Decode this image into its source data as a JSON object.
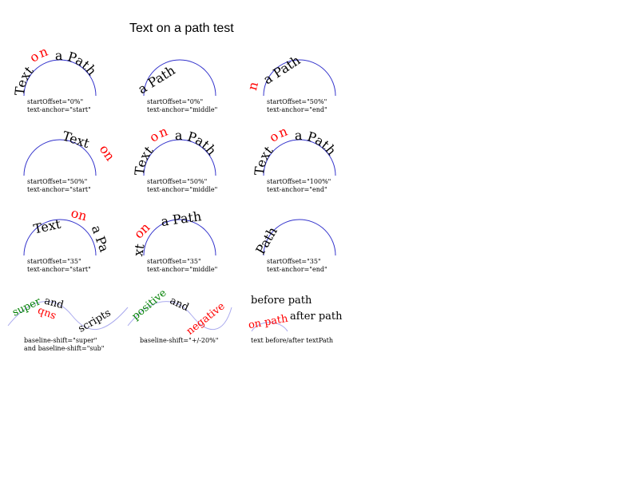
{
  "title": "Text on a path test",
  "colors": {
    "path_stroke": "#3333cc",
    "wave_stroke": "#aaaaee",
    "text_black": "#000000",
    "text_red": "#ff0000",
    "text_green": "#008000"
  },
  "words": {
    "text": "Text",
    "on": "on",
    "a_path": "a Path",
    "path": "Path",
    "n": "n",
    "xt": "xt",
    "a_pa": "a Pa"
  },
  "captions": {
    "r1c1": [
      "startOffset=\"0%\"",
      "text-anchor=\"start\""
    ],
    "r1c2": [
      "startOffset=\"0%\"",
      "text-anchor=\"middle\""
    ],
    "r1c3": [
      "startOffset=\"50%\"",
      "text-anchor=\"end\""
    ],
    "r2c1": [
      "startOffset=\"50%\"",
      "text-anchor=\"start\""
    ],
    "r2c2": [
      "startOffset=\"50%\"",
      "text-anchor=\"middle\""
    ],
    "r2c3": [
      "startOffset=\"100%\"",
      "text-anchor=\"end\""
    ],
    "r3c1": [
      "startOffset=\"35\"",
      "text-anchor=\"start\""
    ],
    "r3c2": [
      "startOffset=\"35\"",
      "text-anchor=\"middle\""
    ],
    "r3c3": [
      "startOffset=\"35\"",
      "text-anchor=\"end\""
    ],
    "r4c1": [
      "baseline-shift=\"super\"",
      "and baseline-shift=\"sub\""
    ],
    "r4c2": [
      "baseline-shift=\"+/-20%\""
    ],
    "r4c3": [
      "text before/after textPath"
    ]
  },
  "shift_demo": {
    "super": "super",
    "and": "and",
    "sub": "sub",
    "scripts": "scripts",
    "positive": "positive",
    "negative": "negative"
  },
  "before_after": {
    "before": "before path",
    "on_path": "on path",
    "after": "after path"
  }
}
